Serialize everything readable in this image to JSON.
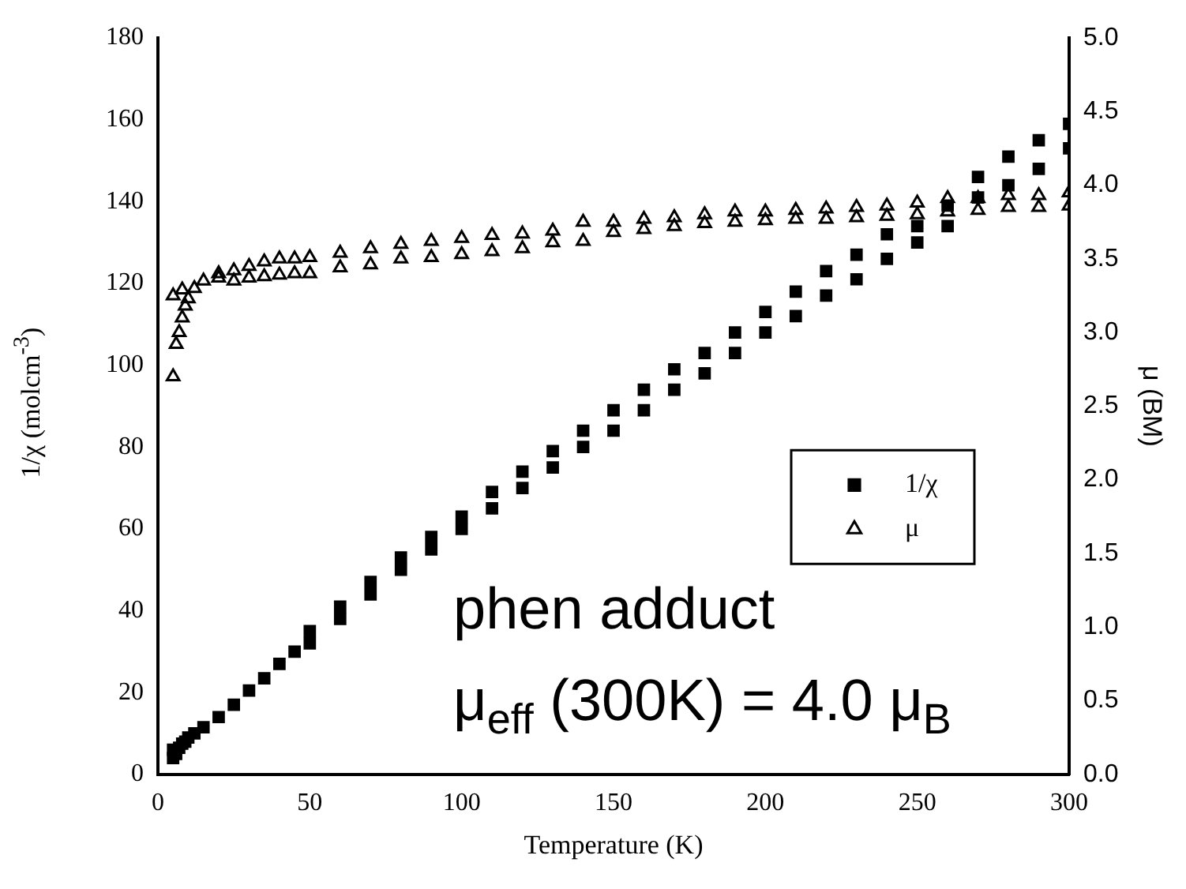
{
  "chart_data": {
    "type": "scatter",
    "xlabel": "Temperature (K)",
    "ylabel": "1/χ (molcm$^{-3}$)",
    "y2label": "μ (BM)",
    "xlim": [
      0,
      300
    ],
    "xticks": [
      0,
      50,
      100,
      150,
      200,
      250,
      300
    ],
    "ylim": [
      0,
      180
    ],
    "yticks": [
      0,
      20,
      40,
      60,
      80,
      100,
      120,
      140,
      160,
      180
    ],
    "y2lim": [
      0,
      5
    ],
    "y2ticks": [
      {
        "value": 0,
        "label": "0.0"
      },
      {
        "value": 0.5,
        "label": "0.5"
      },
      {
        "value": 1,
        "label": "1.0"
      },
      {
        "value": 1.5,
        "label": "1.5"
      },
      {
        "value": 2,
        "label": "2.0"
      },
      {
        "value": 2.5,
        "label": "2.5"
      },
      {
        "value": 3,
        "label": "3.0"
      },
      {
        "value": 3.5,
        "label": "3.5"
      },
      {
        "value": 4,
        "label": "4.0"
      },
      {
        "value": 4.5,
        "label": "4.5"
      },
      {
        "value": 5,
        "label": "5.0"
      }
    ],
    "grid": false,
    "legend": "right",
    "annotations": [
      "phen adduct",
      "μ$_{eff}$ (300K) = 4.0 μ$_{B}$"
    ],
    "series": [
      {
        "name": "1/χ",
        "color": "#000000",
        "marker": "square",
        "x": [
          5,
          5,
          6,
          7,
          8,
          9,
          10,
          12,
          15,
          20,
          25,
          30,
          35,
          40,
          45,
          50,
          50,
          60,
          60,
          70,
          70,
          80,
          80,
          90,
          90,
          100,
          100,
          110,
          110,
          120,
          120,
          130,
          130,
          140,
          140,
          150,
          150,
          160,
          160,
          170,
          170,
          180,
          180,
          190,
          190,
          200,
          200,
          210,
          210,
          220,
          220,
          230,
          230,
          240,
          240,
          250,
          250,
          260,
          260,
          270,
          270,
          280,
          280,
          290,
          290,
          300,
          300
        ],
        "values": [
          4,
          6,
          5,
          6.5,
          7.5,
          8,
          9,
          10,
          11.5,
          14,
          17,
          20.5,
          23.5,
          27,
          30,
          32,
          35,
          38,
          41,
          44,
          47,
          50,
          53,
          55,
          58,
          60,
          63,
          65,
          69,
          70,
          74,
          75,
          79,
          80,
          84,
          84,
          89,
          89,
          94,
          94,
          99,
          98,
          103,
          103,
          108,
          108,
          113,
          112,
          118,
          117,
          123,
          121,
          127,
          126,
          132,
          130,
          134,
          134,
          139,
          141,
          146,
          144,
          151,
          148,
          155,
          153,
          159
        ]
      },
      {
        "name": "μ",
        "color": "#000000",
        "marker": "triangle",
        "axis": "y2",
        "x": [
          5,
          5,
          6,
          7,
          8,
          8,
          9,
          10,
          12,
          15,
          20,
          20,
          25,
          25,
          30,
          30,
          35,
          35,
          40,
          40,
          45,
          45,
          50,
          50,
          60,
          60,
          70,
          70,
          80,
          80,
          90,
          90,
          100,
          100,
          110,
          110,
          120,
          120,
          130,
          130,
          140,
          140,
          150,
          150,
          160,
          160,
          170,
          170,
          180,
          180,
          190,
          190,
          200,
          200,
          210,
          210,
          220,
          220,
          230,
          230,
          240,
          240,
          250,
          250,
          260,
          260,
          270,
          270,
          280,
          280,
          290,
          290,
          300,
          300
        ],
        "values": [
          2.7,
          3.25,
          2.92,
          3.0,
          3.1,
          3.29,
          3.18,
          3.23,
          3.3,
          3.35,
          3.37,
          3.4,
          3.35,
          3.42,
          3.37,
          3.45,
          3.38,
          3.48,
          3.39,
          3.5,
          3.4,
          3.5,
          3.4,
          3.51,
          3.44,
          3.54,
          3.46,
          3.57,
          3.5,
          3.6,
          3.51,
          3.62,
          3.53,
          3.64,
          3.55,
          3.66,
          3.57,
          3.67,
          3.61,
          3.69,
          3.62,
          3.75,
          3.68,
          3.75,
          3.7,
          3.77,
          3.72,
          3.78,
          3.74,
          3.8,
          3.75,
          3.82,
          3.76,
          3.82,
          3.77,
          3.83,
          3.77,
          3.84,
          3.78,
          3.85,
          3.79,
          3.86,
          3.8,
          3.88,
          3.82,
          3.91,
          3.83,
          3.91,
          3.85,
          3.93,
          3.85,
          3.93,
          3.86,
          3.95
        ]
      }
    ]
  }
}
